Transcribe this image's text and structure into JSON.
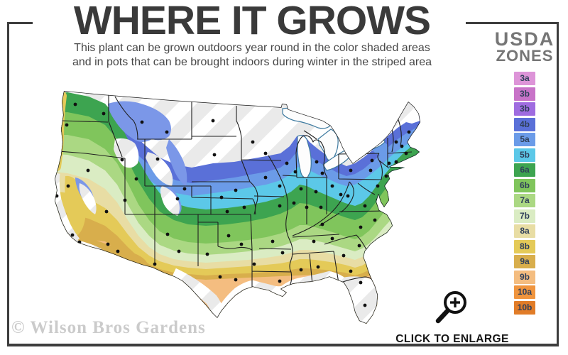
{
  "title": "WHERE IT GROWS",
  "subtitle": {
    "line1": "This plant can be grown outdoors year round in the color shaded areas",
    "line2": "and in pots that can be brought indoors during winter in the striped area"
  },
  "legend": {
    "heading_line1": "USDA",
    "heading_line2": "ZONES",
    "zones": [
      {
        "label": "3a",
        "color": "#dd94d8"
      },
      {
        "label": "3b",
        "color": "#c873c8"
      },
      {
        "label": "3b",
        "color": "#9f6ce0"
      },
      {
        "label": "4b",
        "color": "#5a70d8"
      },
      {
        "label": "5a",
        "color": "#6b9be8"
      },
      {
        "label": "5b",
        "color": "#5cc8e8"
      },
      {
        "label": "6a",
        "color": "#3da450"
      },
      {
        "label": "6b",
        "color": "#80c55c"
      },
      {
        "label": "7a",
        "color": "#abd883"
      },
      {
        "label": "7b",
        "color": "#daecc3"
      },
      {
        "label": "8a",
        "color": "#e8dda4"
      },
      {
        "label": "8b",
        "color": "#e4ca58"
      },
      {
        "label": "9a",
        "color": "#d8ae4c"
      },
      {
        "label": "9b",
        "color": "#f4bd80"
      },
      {
        "label": "10a",
        "color": "#f0953e"
      },
      {
        "label": "10b",
        "color": "#e17c28"
      }
    ]
  },
  "map": {
    "watermark": "© Wilson Bros Gardens",
    "striped_fill": "#eaeaea",
    "stripe_color": "#ffffff",
    "outline_color": "#1a1a1a",
    "state_line_color": "#1f1f1f",
    "lake_fill": "#fdfdfd",
    "lake_stroke": "#3f7ba0",
    "city_dot_color": "#111111",
    "west_blue": "#7b97e8"
  },
  "enlarge": {
    "label": "CLICK TO ENLARGE"
  }
}
